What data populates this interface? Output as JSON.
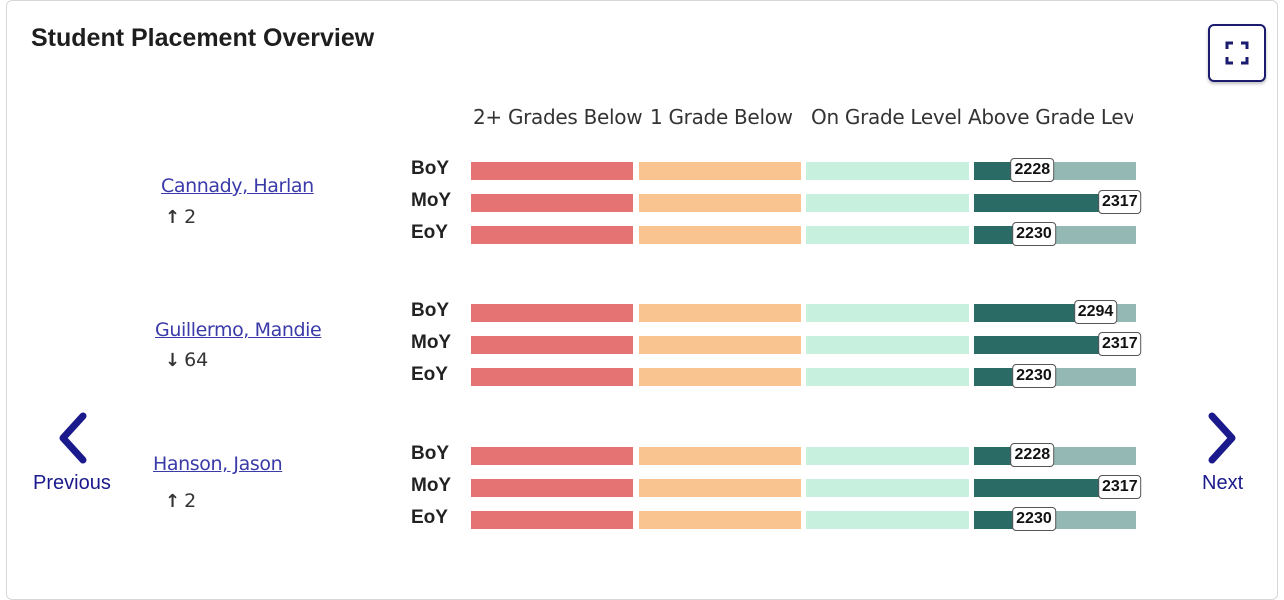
{
  "title": "Student Placement Overview",
  "columns": [
    "2+ Grades Below",
    "1 Grade Below",
    "On Grade Level",
    "Above Grade Level"
  ],
  "nav": {
    "previous": "Previous",
    "next": "Next"
  },
  "colors": {
    "two_below": "#e57373",
    "one_below": "#f9c48f",
    "on_grade": "#c8f0df",
    "above_track": "#94b8b4",
    "above_fill": "#2a6b66",
    "link": "#3a3aa8",
    "nav": "#1a1a8c"
  },
  "students": [
    {
      "name": "Cannady, Harlan",
      "change_icon": "arrow-up-icon",
      "change_symbol": "↑",
      "change": "2",
      "periods": [
        {
          "label": "BoY",
          "score": "2228",
          "fill_fraction": 0.36
        },
        {
          "label": "MoY",
          "score": "2317",
          "fill_fraction": 0.9
        },
        {
          "label": "EoY",
          "score": "2230",
          "fill_fraction": 0.37
        }
      ]
    },
    {
      "name": "Guillermo, Mandie",
      "change_icon": "arrow-down-icon",
      "change_symbol": "↓",
      "change": "64",
      "periods": [
        {
          "label": "BoY",
          "score": "2294",
          "fill_fraction": 0.75
        },
        {
          "label": "MoY",
          "score": "2317",
          "fill_fraction": 0.9
        },
        {
          "label": "EoY",
          "score": "2230",
          "fill_fraction": 0.37
        }
      ]
    },
    {
      "name": "Hanson, Jason",
      "change_icon": "arrow-up-icon",
      "change_symbol": "↑",
      "change": "2",
      "periods": [
        {
          "label": "BoY",
          "score": "2228",
          "fill_fraction": 0.36
        },
        {
          "label": "MoY",
          "score": "2317",
          "fill_fraction": 0.9
        },
        {
          "label": "EoY",
          "score": "2230",
          "fill_fraction": 0.37
        }
      ]
    }
  ]
}
